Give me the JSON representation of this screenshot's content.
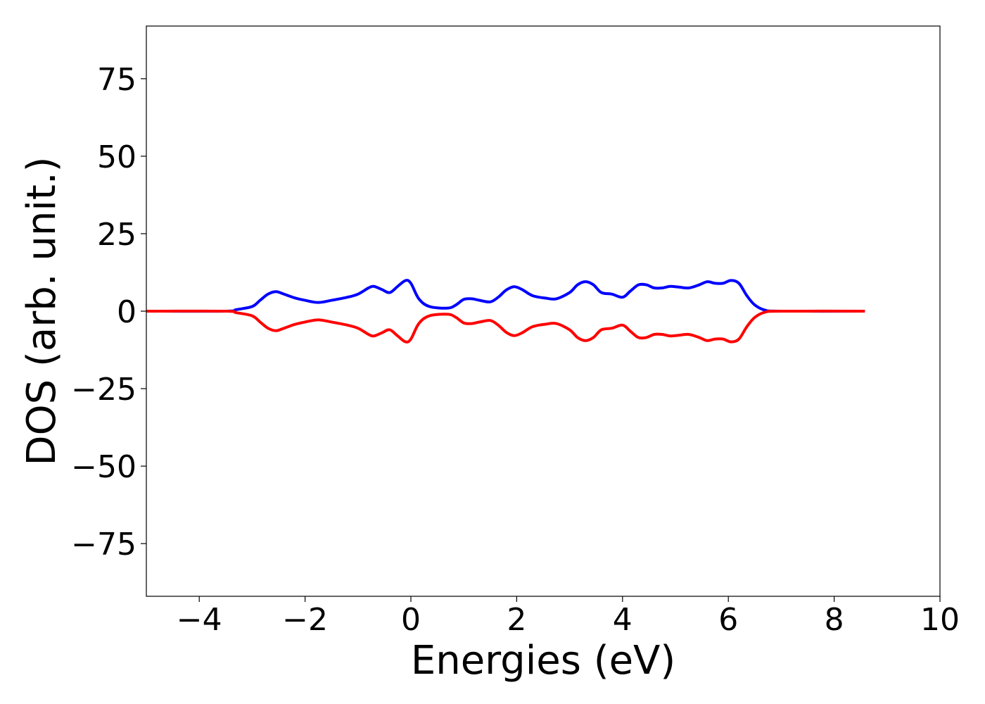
{
  "chart_data": {
    "type": "line",
    "title": "",
    "xlabel": "Energies (eV)",
    "ylabel": "DOS (arb. unit.)",
    "xlim": [
      -5,
      10
    ],
    "ylim": [
      -92,
      92
    ],
    "xticks": [
      -4,
      -2,
      0,
      2,
      4,
      6,
      8,
      10
    ],
    "xtick_labels": [
      "−4",
      "−2",
      "0",
      "2",
      "4",
      "6",
      "8",
      "10"
    ],
    "yticks": [
      75,
      50,
      25,
      0,
      -25,
      -50,
      -75
    ],
    "ytick_labels": [
      "75",
      "50",
      "25",
      "0",
      "−25",
      "−50",
      "−75"
    ],
    "grid": false,
    "legend": "none",
    "series": [
      {
        "color": "#0000ff",
        "x": [
          -5.0,
          -3.5,
          -3.3,
          -3.0,
          -2.85,
          -2.7,
          -2.55,
          -2.4,
          -2.2,
          -2.0,
          -1.75,
          -1.5,
          -1.2,
          -1.0,
          -0.8,
          -0.7,
          -0.55,
          -0.4,
          -0.25,
          -0.1,
          0.0,
          0.15,
          0.35,
          0.7,
          0.85,
          1.0,
          1.15,
          1.3,
          1.5,
          1.65,
          1.8,
          1.95,
          2.1,
          2.3,
          2.55,
          2.75,
          3.0,
          3.15,
          3.3,
          3.45,
          3.6,
          3.8,
          4.0,
          4.15,
          4.3,
          4.45,
          4.6,
          4.75,
          4.9,
          5.05,
          5.25,
          5.45,
          5.6,
          5.75,
          5.9,
          6.05,
          6.2,
          6.35,
          6.5,
          6.7,
          7.0,
          8.58
        ],
        "y": [
          0,
          0,
          0.5,
          1.5,
          3.5,
          5.5,
          6.3,
          5.5,
          4.3,
          3.5,
          2.8,
          3.5,
          4.5,
          5.5,
          7.5,
          8.0,
          7.0,
          6.0,
          8.0,
          9.9,
          9.0,
          4.0,
          1.5,
          1.0,
          2.0,
          3.8,
          4.0,
          3.5,
          3.0,
          4.5,
          6.8,
          7.9,
          7.0,
          5.0,
          4.2,
          4.0,
          6.0,
          8.5,
          9.5,
          8.5,
          6.0,
          5.5,
          4.5,
          6.5,
          8.5,
          8.5,
          7.5,
          7.5,
          8.0,
          7.8,
          7.5,
          8.5,
          9.5,
          9.0,
          9.0,
          9.9,
          9.0,
          5.0,
          2.0,
          0.3,
          0,
          0
        ]
      },
      {
        "color": "#ff0000",
        "x": [
          -5.0,
          -3.5,
          -3.3,
          -3.0,
          -2.85,
          -2.7,
          -2.55,
          -2.4,
          -2.2,
          -2.0,
          -1.75,
          -1.5,
          -1.2,
          -1.0,
          -0.8,
          -0.7,
          -0.55,
          -0.4,
          -0.25,
          -0.1,
          0.0,
          0.15,
          0.35,
          0.7,
          0.85,
          1.0,
          1.15,
          1.3,
          1.5,
          1.65,
          1.8,
          1.95,
          2.1,
          2.3,
          2.55,
          2.75,
          3.0,
          3.15,
          3.3,
          3.45,
          3.6,
          3.8,
          4.0,
          4.15,
          4.3,
          4.45,
          4.6,
          4.75,
          4.9,
          5.05,
          5.25,
          5.45,
          5.6,
          5.75,
          5.9,
          6.05,
          6.2,
          6.35,
          6.5,
          6.7,
          7.0,
          8.58
        ],
        "y": [
          0,
          0,
          -0.5,
          -1.5,
          -3.5,
          -5.5,
          -6.3,
          -5.5,
          -4.3,
          -3.5,
          -2.8,
          -3.5,
          -4.5,
          -5.5,
          -7.5,
          -8.0,
          -7.0,
          -6.0,
          -8.0,
          -9.9,
          -9.0,
          -4.0,
          -1.5,
          -1.0,
          -2.0,
          -3.8,
          -4.0,
          -3.5,
          -3.0,
          -4.5,
          -6.8,
          -7.9,
          -7.0,
          -5.0,
          -4.2,
          -4.0,
          -6.0,
          -8.5,
          -9.5,
          -8.5,
          -6.0,
          -5.5,
          -4.5,
          -6.5,
          -8.5,
          -8.5,
          -7.5,
          -7.5,
          -8.0,
          -7.8,
          -7.5,
          -8.5,
          -9.5,
          -9.0,
          -9.0,
          -9.9,
          -9.0,
          -5.0,
          -2.0,
          -0.3,
          0,
          0
        ]
      }
    ]
  }
}
